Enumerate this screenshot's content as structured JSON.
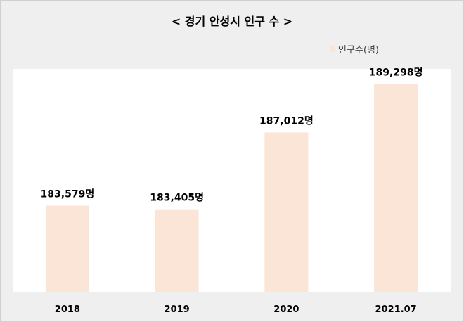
{
  "chart_data": {
    "type": "bar",
    "title": "< 경기 안성시 인구 수 >",
    "categories": [
      "2018",
      "2019",
      "2020",
      "2021.07"
    ],
    "series": [
      {
        "name": "인구수(명)",
        "values": [
          183579,
          183405,
          187012,
          189298
        ],
        "labels": [
          "183,579명",
          "183,405명",
          "187,012명",
          "189,298명"
        ]
      }
    ],
    "ylim": [
      179500,
      190000
    ],
    "grid": false,
    "legend_position": "top-right",
    "colors": {
      "bar": "#fbe5d6",
      "background": "#efefef",
      "plot_area": "#ffffff"
    }
  }
}
